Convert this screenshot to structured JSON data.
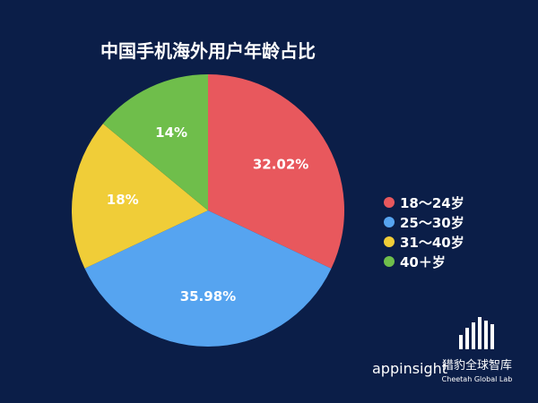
{
  "chart_data": {
    "type": "pie",
    "title": "中国手机海外用户年龄占比",
    "categories": [
      "18～24岁",
      "25～30岁",
      "31～40岁",
      "40＋岁"
    ],
    "values": [
      32.02,
      35.98,
      18,
      14
    ],
    "value_labels": [
      "32.02%",
      "35.98%",
      "18%",
      "14%"
    ],
    "colors": [
      "#e8585d",
      "#56a4f0",
      "#f0cd38",
      "#6fbe4b"
    ],
    "legend_position": "right"
  },
  "branding": {
    "left_logo": "appinsight",
    "right_logo_cn": "猎豹全球智库",
    "right_logo_en": "Cheetah Global Lab"
  },
  "colors": {
    "background": "#0b1e48",
    "text": "#ffffff"
  }
}
